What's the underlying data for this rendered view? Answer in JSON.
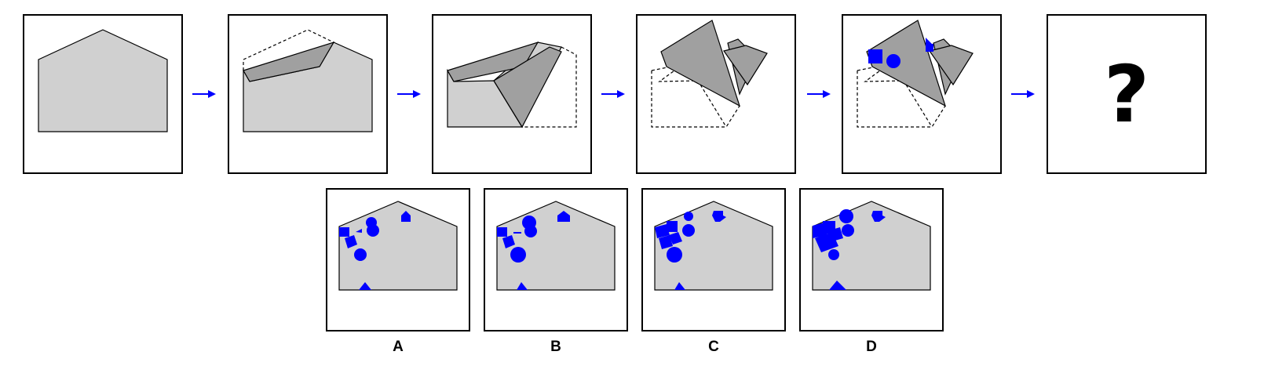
{
  "question_mark": "?",
  "colors": {
    "paper": "#d0d0d0",
    "folded": "#a0a0a0",
    "punch": "#0000ff",
    "arrow": "#0000ff",
    "outline": "#000000"
  },
  "options": [
    {
      "label": "A"
    },
    {
      "label": "B"
    },
    {
      "label": "C"
    },
    {
      "label": "D"
    }
  ]
}
